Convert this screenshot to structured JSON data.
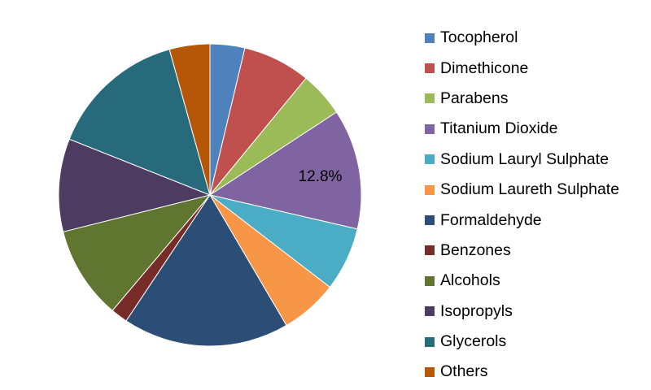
{
  "chart_data": {
    "type": "pie",
    "categories": [
      "Tocopherol",
      "Dimethicone",
      "Parabens",
      "Titanium Dioxide",
      "Sodium Lauryl Sulphate",
      "Sodium Laureth Sulphate",
      "Formaldehyde",
      "Benzones",
      "Alcohols",
      "Isopropyls",
      "Glycerols",
      "Others"
    ],
    "values": [
      3.7,
      7.2,
      4.8,
      12.8,
      6.8,
      6.1,
      17.7,
      1.8,
      9.9,
      9.9,
      14.6,
      4.3
    ],
    "unit": "%",
    "colors": [
      "#4f81bd",
      "#c0504d",
      "#9bbb59",
      "#8064a2",
      "#4bacc6",
      "#f79646",
      "#2c4d75",
      "#772c2a",
      "#5f7530",
      "#4d3b62",
      "#276a7c",
      "#b65708"
    ],
    "data_labels": [
      {
        "category": "Titanium Dioxide",
        "text": "12.8%"
      }
    ],
    "start_angle_deg": 0,
    "direction": "clockwise",
    "legend_position": "right"
  }
}
